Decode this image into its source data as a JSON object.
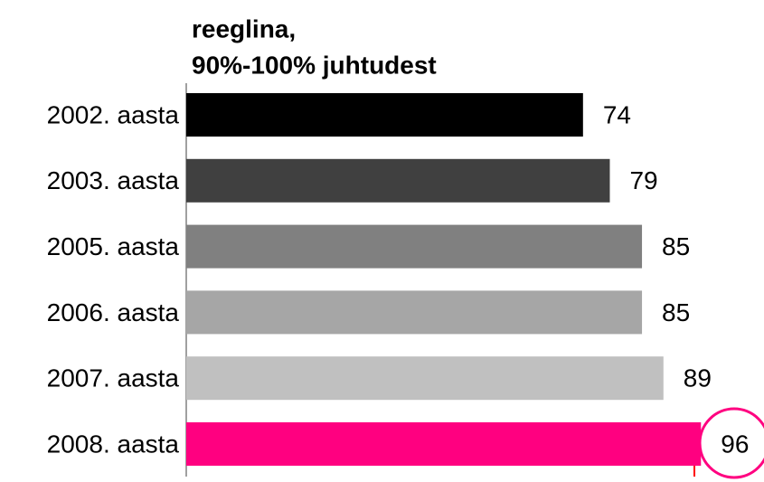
{
  "chart_data": {
    "type": "bar",
    "orientation": "horizontal",
    "title": [
      "reeglina,",
      "90%-100% juhtudest"
    ],
    "categories": [
      "2002. aasta",
      "2003. aasta",
      "2005. aasta",
      "2006. aasta",
      "2007. aasta",
      "2008. aasta"
    ],
    "values": [
      74,
      79,
      85,
      85,
      89,
      96
    ],
    "colors": [
      "#000000",
      "#404040",
      "#808080",
      "#a6a6a6",
      "#c0c0c0",
      "#ff0080"
    ],
    "xlim": [
      0,
      100
    ]
  }
}
